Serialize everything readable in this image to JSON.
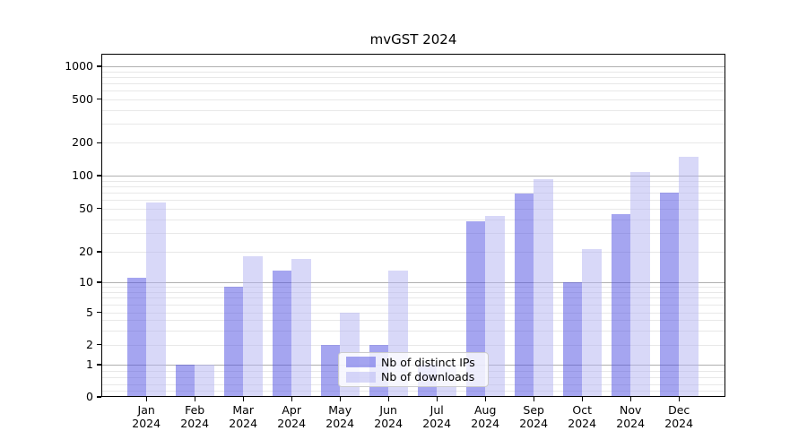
{
  "title": "mvGST 2024",
  "chart_data": {
    "type": "bar",
    "title": "mvGST 2024",
    "categories": [
      "Jan",
      "Feb",
      "Mar",
      "Apr",
      "May",
      "Jun",
      "Jul",
      "Aug",
      "Sep",
      "Oct",
      "Nov",
      "Dec"
    ],
    "x_year_suffix": "2024",
    "series": [
      {
        "name": "Nb of distinct IPs",
        "color": "rgba(75,75,225,0.5)",
        "values": [
          11,
          1,
          9,
          13,
          2,
          2,
          1,
          38,
          68,
          10,
          44,
          70
        ]
      },
      {
        "name": "Nb of downloads",
        "color": "rgba(177,177,241,0.5)",
        "values": [
          57,
          1,
          18,
          17,
          5,
          13,
          1,
          43,
          93,
          21,
          107,
          150
        ]
      }
    ],
    "y_axis": {
      "scale": "symlog",
      "tick_values": [
        1000,
        500,
        200,
        100,
        50,
        20,
        10,
        5,
        2,
        1,
        0
      ],
      "major_grid_values": [
        1,
        10,
        100,
        1000
      ],
      "minor_grid_values": [
        0.2,
        0.4,
        0.6,
        0.8,
        2,
        3,
        4,
        5,
        6,
        7,
        8,
        9,
        20,
        30,
        40,
        60,
        70,
        80,
        90,
        50,
        200,
        300,
        400,
        500,
        600,
        700,
        800,
        900
      ],
      "ylim": [
        0,
        1300
      ]
    },
    "legend": {
      "position": "lower center",
      "entries": [
        "Nb of distinct IPs",
        "Nb of downloads"
      ]
    },
    "grid": true
  },
  "colors": {
    "bar_distinct_ips": "rgba(75,75,225,0.5)",
    "bar_downloads": "rgba(177,177,241,0.5)",
    "grid_major": "#b0b0b0",
    "grid_minor": "#e8e8e8",
    "spine": "#000000",
    "legend_border": "#cccccc"
  }
}
